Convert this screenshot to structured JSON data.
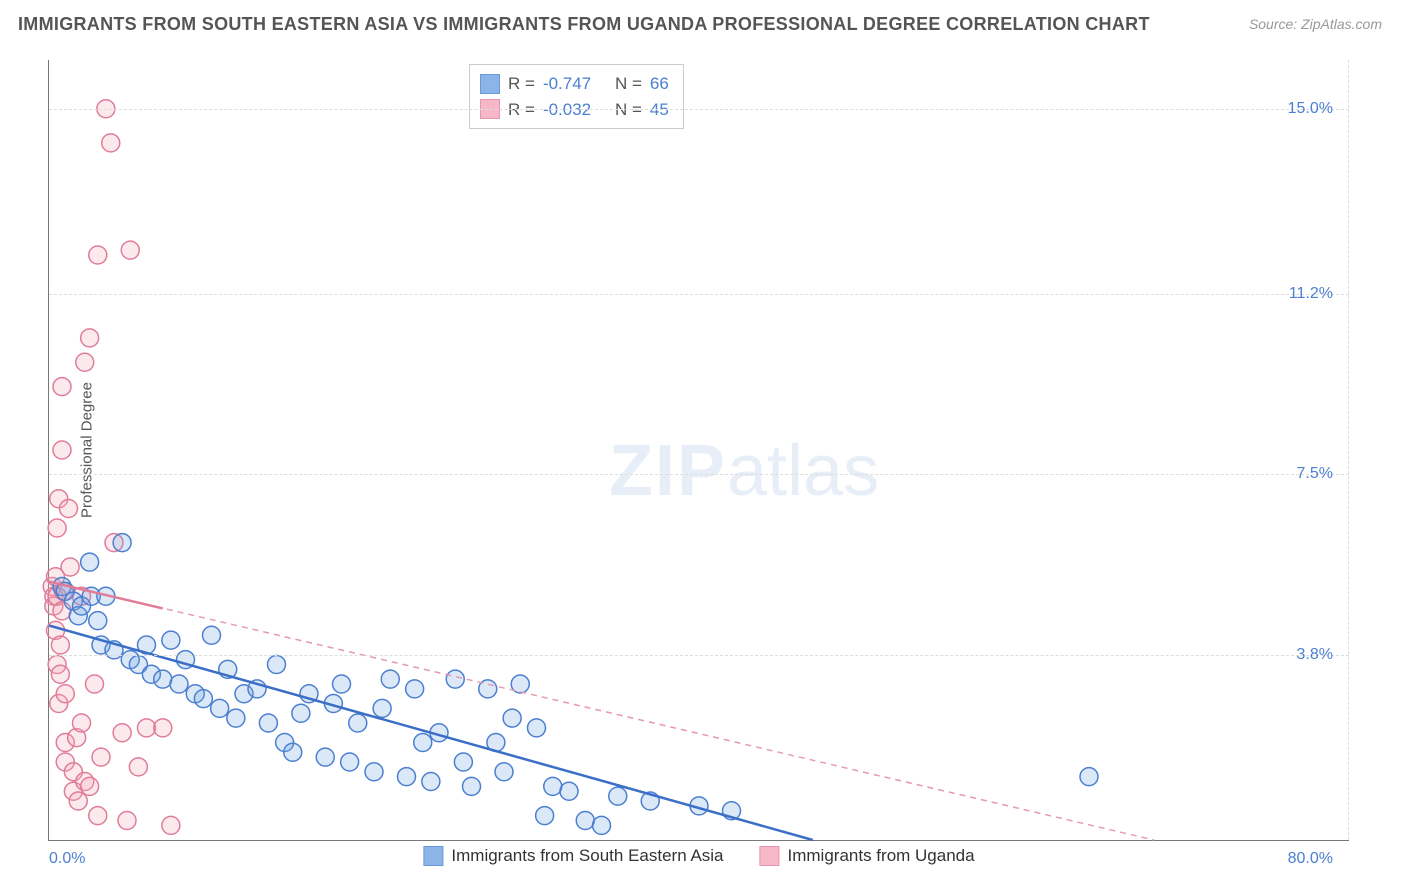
{
  "title": "IMMIGRANTS FROM SOUTH EASTERN ASIA VS IMMIGRANTS FROM UGANDA PROFESSIONAL DEGREE CORRELATION CHART",
  "source": "Source: ZipAtlas.com",
  "watermark_bold": "ZIP",
  "watermark_light": "atlas",
  "chart": {
    "type": "scatter",
    "background_color": "#ffffff",
    "grid_color": "#dddddd",
    "axis_color": "#777777",
    "label_font_size": 15,
    "tick_font_size": 16,
    "tick_color": "#4b7fd1",
    "xlim": [
      0,
      80
    ],
    "ylim": [
      0,
      16
    ],
    "xticks": [
      {
        "value": 0,
        "label": "0.0%"
      },
      {
        "value": 80,
        "label": "80.0%"
      }
    ],
    "yticks": [
      {
        "value": 3.8,
        "label": "3.8%"
      },
      {
        "value": 7.5,
        "label": "7.5%"
      },
      {
        "value": 11.2,
        "label": "11.2%"
      },
      {
        "value": 15.0,
        "label": "15.0%"
      }
    ],
    "ylabel": "Professional Degree",
    "marker_radius": 9,
    "marker_fill_opacity": 0.25,
    "marker_stroke_width": 1.5,
    "series": [
      {
        "name": "Immigrants from South Eastern Asia",
        "color": "#6fa3e0",
        "stroke": "#4b7fd1",
        "stats": {
          "R": "-0.747",
          "N": "66"
        },
        "trend": {
          "x1": 0,
          "y1": 4.4,
          "x2": 47,
          "y2": 0.0,
          "dash": "none",
          "width": 2.5,
          "color": "#3b6fc7"
        },
        "points": [
          [
            0.8,
            5.2
          ],
          [
            1.0,
            5.1
          ],
          [
            1.5,
            4.9
          ],
          [
            1.8,
            4.6
          ],
          [
            2.0,
            4.8
          ],
          [
            2.5,
            5.7
          ],
          [
            2.6,
            5.0
          ],
          [
            3.0,
            4.5
          ],
          [
            3.2,
            4.0
          ],
          [
            3.5,
            5.0
          ],
          [
            4.0,
            3.9
          ],
          [
            4.5,
            6.1
          ],
          [
            5.0,
            3.7
          ],
          [
            5.5,
            3.6
          ],
          [
            6.0,
            4.0
          ],
          [
            6.3,
            3.4
          ],
          [
            7.0,
            3.3
          ],
          [
            7.5,
            4.1
          ],
          [
            8.0,
            3.2
          ],
          [
            8.4,
            3.7
          ],
          [
            9.0,
            3.0
          ],
          [
            9.5,
            2.9
          ],
          [
            10.0,
            4.2
          ],
          [
            10.5,
            2.7
          ],
          [
            11.0,
            3.5
          ],
          [
            11.5,
            2.5
          ],
          [
            12.0,
            3.0
          ],
          [
            12.8,
            3.1
          ],
          [
            13.5,
            2.4
          ],
          [
            14.0,
            3.6
          ],
          [
            14.5,
            2.0
          ],
          [
            15.0,
            1.8
          ],
          [
            15.5,
            2.6
          ],
          [
            16.0,
            3.0
          ],
          [
            17.0,
            1.7
          ],
          [
            17.5,
            2.8
          ],
          [
            18.0,
            3.2
          ],
          [
            18.5,
            1.6
          ],
          [
            19.0,
            2.4
          ],
          [
            20.0,
            1.4
          ],
          [
            20.5,
            2.7
          ],
          [
            21.0,
            3.3
          ],
          [
            22.0,
            1.3
          ],
          [
            22.5,
            3.1
          ],
          [
            23.0,
            2.0
          ],
          [
            23.5,
            1.2
          ],
          [
            24.0,
            2.2
          ],
          [
            25.0,
            3.3
          ],
          [
            25.5,
            1.6
          ],
          [
            26.0,
            1.1
          ],
          [
            27.0,
            3.1
          ],
          [
            27.5,
            2.0
          ],
          [
            28.0,
            1.4
          ],
          [
            28.5,
            2.5
          ],
          [
            29.0,
            3.2
          ],
          [
            30.0,
            2.3
          ],
          [
            30.5,
            0.5
          ],
          [
            31.0,
            1.1
          ],
          [
            32.0,
            1.0
          ],
          [
            33.0,
            0.4
          ],
          [
            34.0,
            0.3
          ],
          [
            35.0,
            0.9
          ],
          [
            37.0,
            0.8
          ],
          [
            40.0,
            0.7
          ],
          [
            42.0,
            0.6
          ],
          [
            64.0,
            1.3
          ]
        ]
      },
      {
        "name": "Immigrants from Uganda",
        "color": "#f4a6bb",
        "stroke": "#e07c98",
        "stats": {
          "R": "-0.032",
          "N": "45"
        },
        "trend": {
          "x1": 0,
          "y1": 5.3,
          "x2": 68,
          "y2": 0.0,
          "dash": "6 5",
          "width": 1.5,
          "color": "#e59aad"
        },
        "trend_solid": {
          "x1": 0,
          "y1": 5.3,
          "x2": 7,
          "y2": 4.75,
          "width": 2.5,
          "color": "#e07c98"
        },
        "points": [
          [
            0.2,
            5.2
          ],
          [
            0.3,
            5.0
          ],
          [
            0.3,
            4.8
          ],
          [
            0.4,
            5.4
          ],
          [
            0.4,
            4.3
          ],
          [
            0.5,
            5.0
          ],
          [
            0.5,
            3.6
          ],
          [
            0.5,
            6.4
          ],
          [
            0.6,
            7.0
          ],
          [
            0.6,
            2.8
          ],
          [
            0.7,
            3.4
          ],
          [
            0.7,
            4.0
          ],
          [
            0.8,
            9.3
          ],
          [
            0.8,
            8.0
          ],
          [
            0.8,
            4.7
          ],
          [
            0.9,
            5.1
          ],
          [
            1.0,
            2.0
          ],
          [
            1.0,
            1.6
          ],
          [
            1.0,
            3.0
          ],
          [
            1.2,
            6.8
          ],
          [
            1.3,
            5.6
          ],
          [
            1.5,
            1.4
          ],
          [
            1.5,
            1.0
          ],
          [
            1.7,
            2.1
          ],
          [
            1.8,
            0.8
          ],
          [
            2.0,
            2.4
          ],
          [
            2.0,
            5.0
          ],
          [
            2.2,
            9.8
          ],
          [
            2.2,
            1.2
          ],
          [
            2.5,
            1.1
          ],
          [
            2.5,
            10.3
          ],
          [
            2.8,
            3.2
          ],
          [
            3.0,
            0.5
          ],
          [
            3.0,
            12.0
          ],
          [
            3.2,
            1.7
          ],
          [
            3.5,
            15.0
          ],
          [
            3.8,
            14.3
          ],
          [
            4.0,
            6.1
          ],
          [
            4.5,
            2.2
          ],
          [
            4.8,
            0.4
          ],
          [
            5.0,
            12.1
          ],
          [
            5.5,
            1.5
          ],
          [
            6.0,
            2.3
          ],
          [
            7.0,
            2.3
          ],
          [
            7.5,
            0.3
          ]
        ]
      }
    ],
    "stats_box": {
      "R_label": "R =",
      "N_label": "N ="
    }
  }
}
